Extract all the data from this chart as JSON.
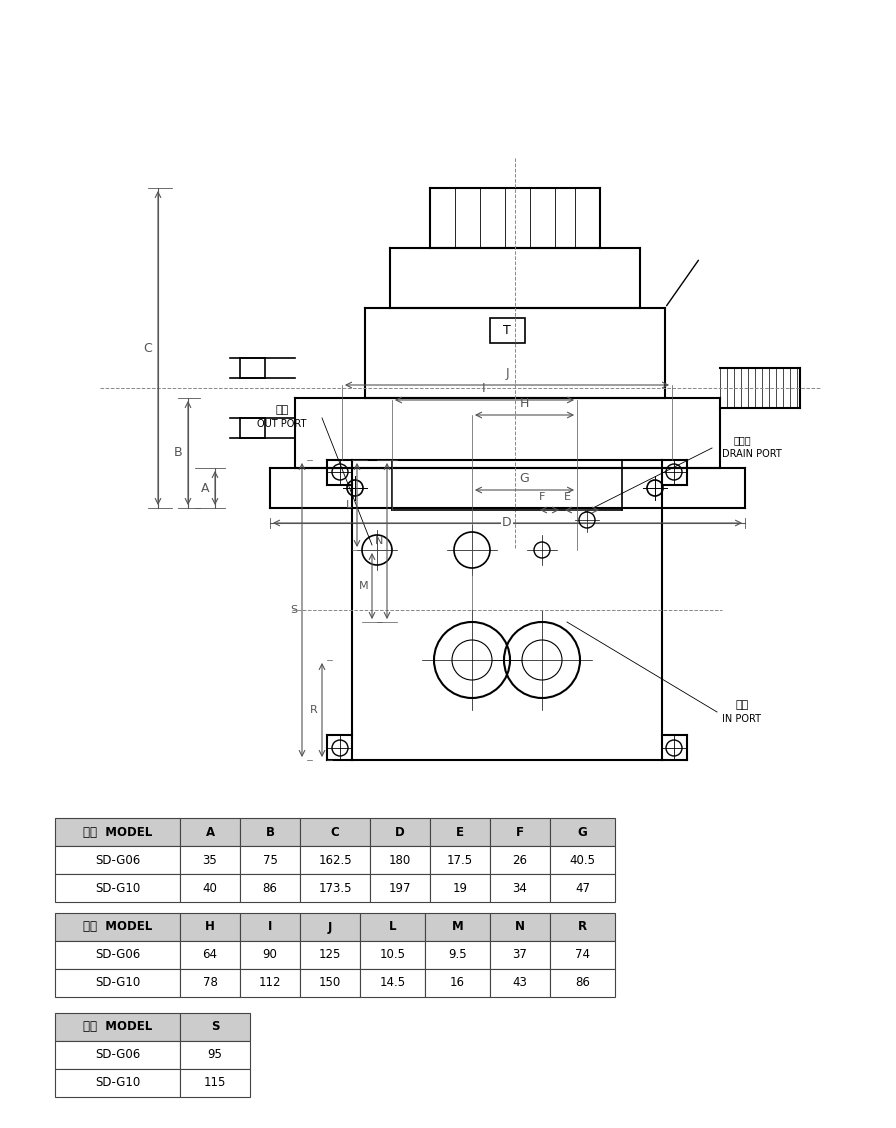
{
  "table1_headers": [
    "型式  MODEL",
    "A",
    "B",
    "C",
    "D",
    "E",
    "F",
    "G"
  ],
  "table1_rows": [
    [
      "SD-G06",
      "35",
      "75",
      "162.5",
      "180",
      "17.5",
      "26",
      "40.5"
    ],
    [
      "SD-G10",
      "40",
      "86",
      "173.5",
      "197",
      "19",
      "34",
      "47"
    ]
  ],
  "table2_headers": [
    "型式  MODEL",
    "H",
    "I",
    "J",
    "L",
    "M",
    "N",
    "R"
  ],
  "table2_rows": [
    [
      "SD-G06",
      "64",
      "90",
      "125",
      "10.5",
      "9.5",
      "37",
      "74"
    ],
    [
      "SD-G10",
      "78",
      "112",
      "150",
      "14.5",
      "16",
      "43",
      "86"
    ]
  ],
  "table3_headers": [
    "型式  MODEL",
    "S"
  ],
  "table3_rows": [
    [
      "SD-G06",
      "95"
    ],
    [
      "SD-G10",
      "115"
    ]
  ],
  "bg_color": "#ffffff",
  "line_color": "#000000",
  "dim_color": "#555555",
  "table_header_bg": "#d0d0d0",
  "table_border_color": "#666666"
}
